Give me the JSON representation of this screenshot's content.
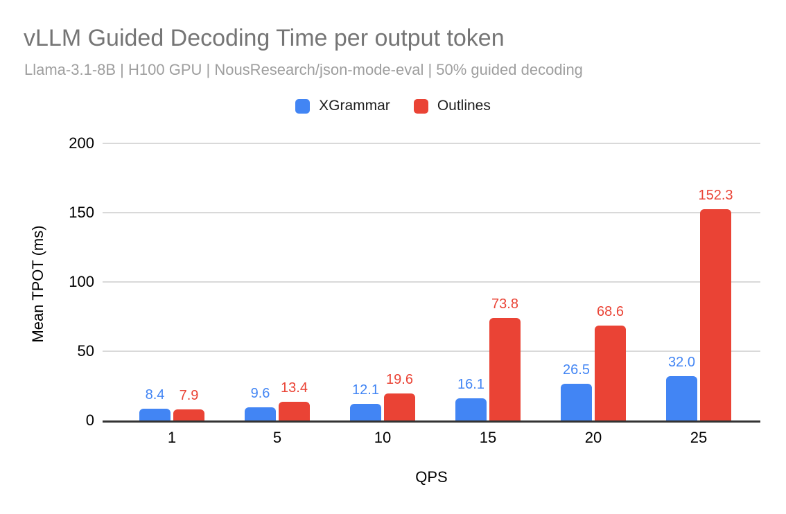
{
  "header": {
    "title": "vLLM Guided Decoding Time per output token",
    "subtitle": "Llama-3.1-8B | H100 GPU | NousResearch/json-mode-eval | 50% guided decoding"
  },
  "legend": {
    "items": [
      {
        "label": "XGrammar",
        "color": "#4285f4"
      },
      {
        "label": "Outlines",
        "color": "#ea4335"
      }
    ]
  },
  "colors": {
    "xgrammar": "#4285f4",
    "outlines": "#ea4335",
    "title": "#757575",
    "subtitle": "#9e9e9e",
    "gridline": "#d9d9d9",
    "axis_line": "#333333",
    "tick_text": "#000000"
  },
  "chart_data": {
    "type": "bar",
    "title": "vLLM Guided Decoding Time per output token",
    "subtitle": "Llama-3.1-8B | H100 GPU | NousResearch/json-mode-eval | 50% guided decoding",
    "categories": [
      "1",
      "5",
      "10",
      "15",
      "20",
      "25"
    ],
    "series": [
      {
        "name": "XGrammar",
        "color": "#4285f4",
        "values": [
          8.4,
          9.6,
          12.1,
          16.1,
          26.5,
          32.0
        ],
        "value_labels": [
          "8.4",
          "9.6",
          "12.1",
          "16.1",
          "26.5",
          "32.0"
        ]
      },
      {
        "name": "Outlines",
        "color": "#ea4335",
        "values": [
          7.9,
          13.4,
          19.6,
          73.8,
          68.6,
          152.3
        ],
        "value_labels": [
          "7.9",
          "13.4",
          "19.6",
          "73.8",
          "68.6",
          "152.3"
        ]
      }
    ],
    "xlabel": "QPS",
    "ylabel": "Mean TPOT (ms)",
    "ylim": [
      0,
      200
    ],
    "yticks": [
      0,
      50,
      100,
      150,
      200
    ],
    "grid": true,
    "legend_position": "top",
    "data_labels": true
  }
}
